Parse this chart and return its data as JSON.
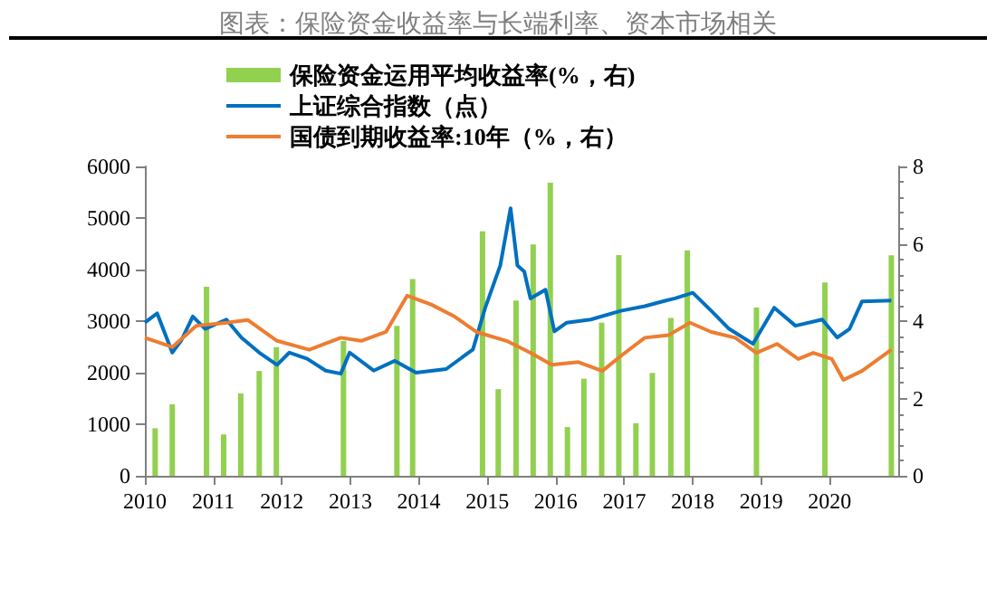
{
  "chart_data": {
    "type": "line",
    "title": "图表：保险资金收益率与长端利率、资本市场相关",
    "xlim": [
      2010,
      2021
    ],
    "xticks": [
      2010,
      2011,
      2012,
      2013,
      2014,
      2015,
      2016,
      2017,
      2018,
      2019,
      2020
    ],
    "ylim": [
      0,
      6000
    ],
    "yticks": [
      0,
      1000,
      2000,
      3000,
      4000,
      5000,
      6000
    ],
    "y2lim": [
      0,
      8
    ],
    "y2ticks": [
      0,
      2,
      4,
      6,
      8
    ],
    "legend": "top",
    "grid": false,
    "marker": "none",
    "series": [
      {
        "name": "保险资金运用平均收益率(%，右)",
        "type": "bar",
        "axis": "y2",
        "color": "#92d050",
        "x": [
          2010.15,
          2010.4,
          2010.9,
          2011.15,
          2011.4,
          2011.67,
          2011.92,
          2012.9,
          2013.68,
          2013.91,
          2014.93,
          2015.16,
          2015.42,
          2015.67,
          2015.92,
          2016.17,
          2016.41,
          2016.67,
          2016.92,
          2017.17,
          2017.41,
          2017.68,
          2017.92,
          2018.93,
          2019.93,
          2020.9
        ],
        "values": [
          1.23,
          1.85,
          4.89,
          1.07,
          2.13,
          2.71,
          3.33,
          3.49,
          3.88,
          5.09,
          6.32,
          2.24,
          4.53,
          5.98,
          7.58,
          1.26,
          2.51,
          3.96,
          5.71,
          1.36,
          2.66,
          4.08,
          5.83,
          4.35,
          5.0,
          5.7
        ]
      },
      {
        "name": "上证综合指数（点）",
        "color": "#0070c0",
        "x": [
          2010.0,
          2010.18,
          2010.4,
          2010.53,
          2010.7,
          2010.88,
          2011.19,
          2011.41,
          2011.67,
          2011.93,
          2012.11,
          2012.37,
          2012.64,
          2012.86,
          2012.99,
          2013.34,
          2013.65,
          2013.96,
          2014.4,
          2014.79,
          2014.97,
          2015.19,
          2015.34,
          2015.44,
          2015.54,
          2015.63,
          2015.85,
          2015.98,
          2016.16,
          2016.51,
          2016.95,
          2017.3,
          2017.61,
          2017.74,
          2018.0,
          2018.27,
          2018.53,
          2018.88,
          2019.19,
          2019.5,
          2019.89,
          2020.11,
          2020.29,
          2020.47,
          2020.9
        ],
        "values": [
          2970,
          3150,
          2390,
          2620,
          3090,
          2850,
          3030,
          2680,
          2390,
          2150,
          2390,
          2270,
          2040,
          1980,
          2390,
          2040,
          2230,
          2000,
          2070,
          2450,
          3260,
          4080,
          5190,
          4080,
          3960,
          3440,
          3610,
          2800,
          2970,
          3030,
          3200,
          3290,
          3400,
          3440,
          3550,
          3200,
          2850,
          2560,
          3260,
          2910,
          3030,
          2680,
          2850,
          3380,
          3400
        ]
      },
      {
        "name": "国债到期收益率:10年（%，右）",
        "axis": "y2",
        "color": "#ed7d31",
        "x": [
          2010.0,
          2010.4,
          2010.75,
          2011.2,
          2011.5,
          2011.93,
          2012.4,
          2012.86,
          2013.16,
          2013.52,
          2013.83,
          2014.18,
          2014.53,
          2014.84,
          2015.28,
          2015.63,
          2015.94,
          2016.33,
          2016.68,
          2016.95,
          2017.3,
          2017.65,
          2017.96,
          2018.27,
          2018.62,
          2018.93,
          2019.23,
          2019.54,
          2019.76,
          2020.03,
          2020.2,
          2020.47,
          2020.9
        ],
        "values": [
          3.57,
          3.33,
          3.88,
          3.96,
          4.03,
          3.49,
          3.26,
          3.57,
          3.49,
          3.72,
          4.66,
          4.43,
          4.11,
          3.72,
          3.49,
          3.18,
          2.87,
          2.94,
          2.71,
          3.1,
          3.57,
          3.64,
          3.96,
          3.72,
          3.57,
          3.18,
          3.41,
          3.02,
          3.18,
          3.02,
          2.48,
          2.71,
          3.26
        ]
      }
    ]
  }
}
